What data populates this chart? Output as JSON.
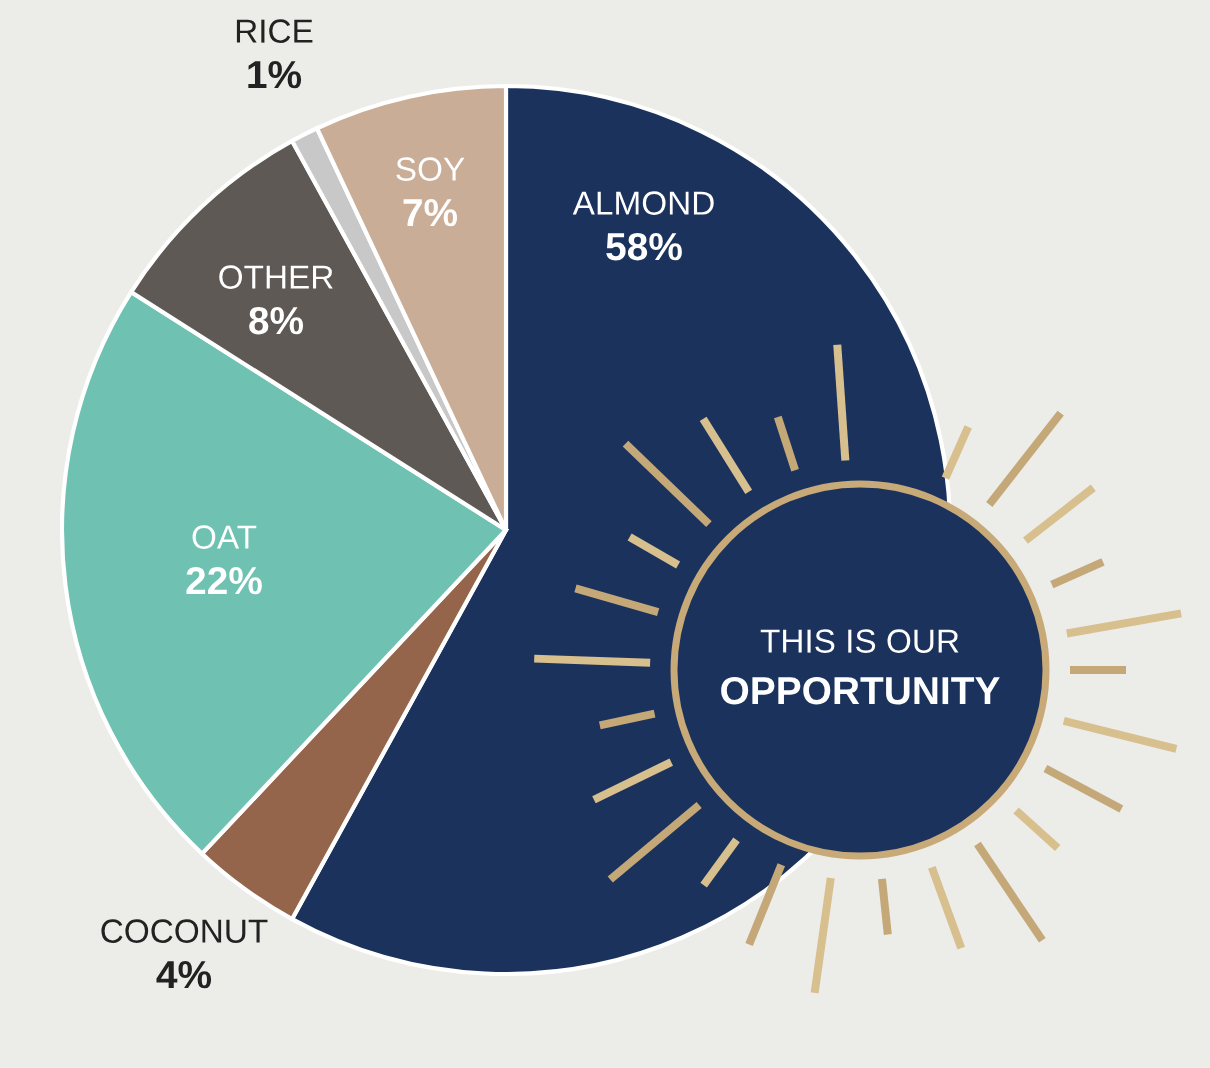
{
  "chart_data": {
    "type": "pie",
    "categories": [
      "ALMOND",
      "COCONUT",
      "OAT",
      "OTHER",
      "RICE",
      "SOY"
    ],
    "values": [
      58,
      4,
      22,
      8,
      1,
      7
    ],
    "colors": [
      "#1b335c",
      "#94654a",
      "#6fc2b2",
      "#5e5954",
      "#c8c8c8",
      "#c9ad97"
    ],
    "value_labels": [
      "58%",
      "4%",
      "22%",
      "8%",
      "1%",
      "7%"
    ],
    "annotations": [
      "THIS IS OUR",
      "OPPORTUNITY"
    ]
  }
}
